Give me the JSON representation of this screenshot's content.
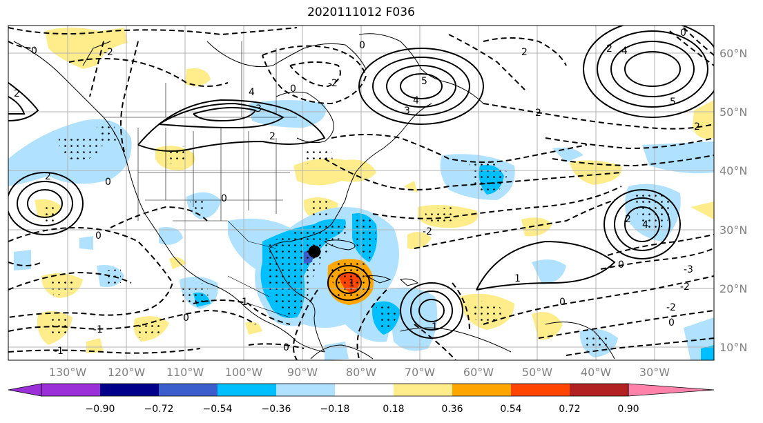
{
  "title": "2020111012 F036",
  "map": {
    "lat_labels": [
      "60°N",
      "50°N",
      "40°N",
      "30°N",
      "20°N",
      "10°N"
    ],
    "lat_values": [
      60,
      50,
      40,
      30,
      20,
      10
    ],
    "lon_labels": [
      "130°W",
      "120°W",
      "110°W",
      "100°W",
      "90°W",
      "80°W",
      "70°W",
      "60°W",
      "50°W",
      "40°W",
      "30°W"
    ],
    "lon_values": [
      -130,
      -120,
      -110,
      -100,
      -90,
      -80,
      -70,
      -60,
      -50,
      -40,
      -30
    ],
    "extent": {
      "lon_min": -138,
      "lon_max": -17,
      "lat_min": 8,
      "lat_max": 65
    },
    "storm_marker": {
      "lon": -85.5,
      "lat": 26.5
    }
  },
  "colorbar": {
    "tick_labels": [
      "−0.90",
      "−0.72",
      "−0.54",
      "−0.36",
      "−0.18",
      "0.18",
      "0.36",
      "0.54",
      "0.72",
      "0.90"
    ],
    "colors": [
      "#9b30d9",
      "#00008b",
      "#3a5fcd",
      "#00bfff",
      "#b0e2ff",
      "#ffffff",
      "#ffec8b",
      "#ffa500",
      "#ff4500",
      "#b22222",
      "#ff82ab"
    ]
  },
  "contour_labels": [
    "5",
    "4",
    "3",
    "2",
    "1",
    "0",
    "-1",
    "-2",
    "-3"
  ]
}
